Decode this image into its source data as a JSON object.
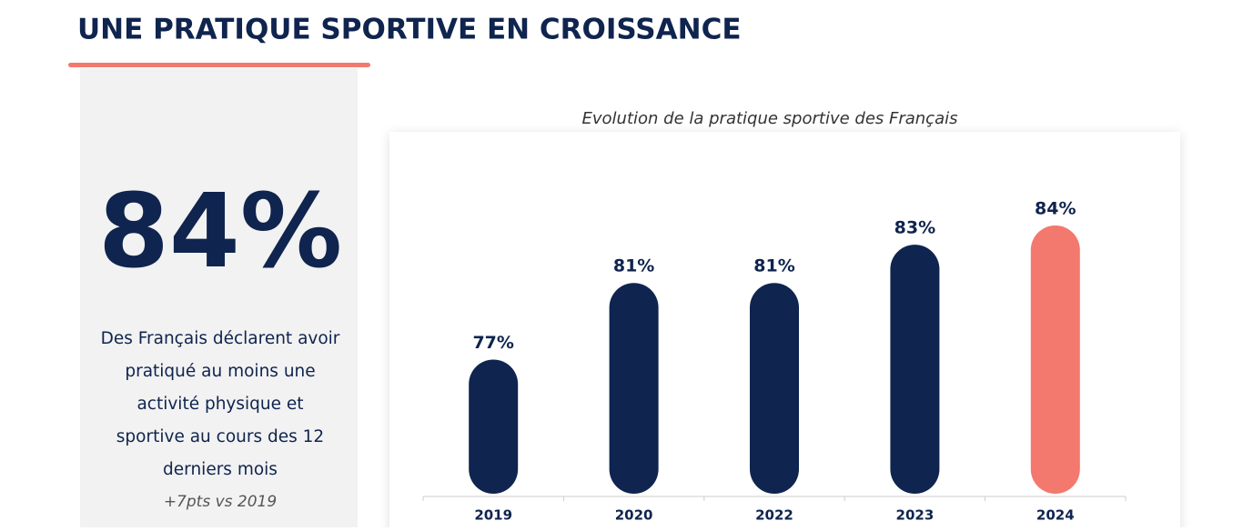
{
  "header": {
    "title": "UNE PRATIQUE SPORTIVE EN CROISSANCE"
  },
  "sidebar": {
    "stat": "84%",
    "description": [
      "Des Français déclarent avoir",
      "pratiqué au moins une",
      "activité physique et",
      "sportive au cours des 12",
      "derniers mois"
    ],
    "note": "+7pts vs 2019"
  },
  "chart_data": {
    "type": "bar",
    "title": "Evolution de la pratique sportive des Français",
    "categories": [
      "2019",
      "2020",
      "2022",
      "2023",
      "2024"
    ],
    "values": [
      77,
      81,
      81,
      83,
      84
    ],
    "value_labels": [
      "77%",
      "81%",
      "81%",
      "83%",
      "84%"
    ],
    "colors": [
      "#0f244e",
      "#0f244e",
      "#0f244e",
      "#0f244e",
      "#f3786d"
    ],
    "ylim": [
      70,
      84
    ],
    "grid": false
  }
}
